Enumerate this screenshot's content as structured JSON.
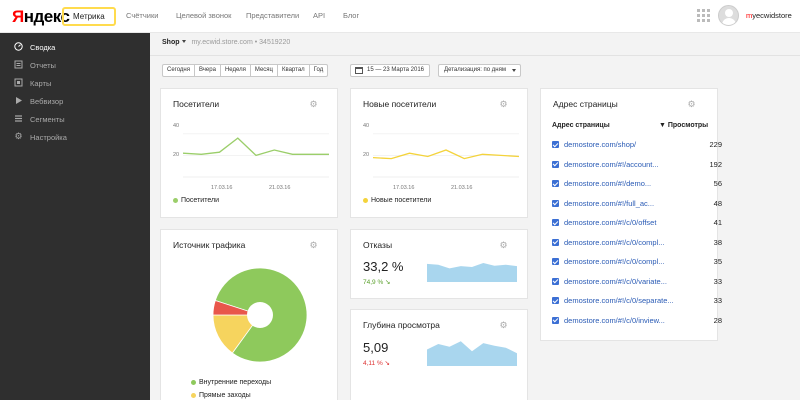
{
  "header": {
    "logo_ya": "Я",
    "logo_rest": "ндекс",
    "product_tab": "Метрика",
    "nav": [
      "Счётчики",
      "Целевой звонок",
      "Представители",
      "API",
      "Блог"
    ],
    "username_first": "m",
    "username_rest": "yecwidstore"
  },
  "sidebar": {
    "items": [
      {
        "label": "Сводка",
        "icon": "dashboard-icon",
        "active": true
      },
      {
        "label": "Отчеты",
        "icon": "reports-icon",
        "active": false
      },
      {
        "label": "Карты",
        "icon": "maps-icon",
        "active": false
      },
      {
        "label": "Вебвизор",
        "icon": "play-icon",
        "active": false
      },
      {
        "label": "Сегменты",
        "icon": "segments-icon",
        "active": false
      },
      {
        "label": "Настройка",
        "icon": "gear-icon",
        "active": false
      }
    ]
  },
  "breadcrumb": {
    "site": "Shop",
    "url": "my.ecwid.store.com",
    "separator": "•",
    "counter_id": "34519220"
  },
  "period_buttons": [
    "Сегодня",
    "Вчера",
    "Неделя",
    "Месяц",
    "Квартал",
    "Год"
  ],
  "date_range": "15 — 23 Марта 2016",
  "detail_label": "Детализация: по дням",
  "visitors_card": {
    "title": "Посетители",
    "y_ticks": [
      "40",
      "20"
    ],
    "x_ticks": [
      "17.03.16",
      "21.03.16"
    ],
    "legend": "Посетители",
    "color": "#9bce6a",
    "chart_data": {
      "type": "line",
      "x": [
        "15.03.16",
        "16.03.16",
        "17.03.16",
        "18.03.16",
        "19.03.16",
        "20.03.16",
        "21.03.16",
        "22.03.16",
        "23.03.16"
      ],
      "series": [
        {
          "name": "Посетители",
          "values": [
            22,
            21,
            23,
            36,
            20,
            25,
            21,
            21,
            21
          ]
        }
      ],
      "ylim": [
        0,
        50
      ]
    }
  },
  "new_visitors_card": {
    "title": "Новые посетители",
    "y_ticks": [
      "40",
      "20"
    ],
    "x_ticks": [
      "17.03.16",
      "21.03.16"
    ],
    "legend": "Новые посетители",
    "color": "#f4d33b",
    "chart_data": {
      "type": "line",
      "x": [
        "15.03.16",
        "16.03.16",
        "17.03.16",
        "18.03.16",
        "19.03.16",
        "20.03.16",
        "21.03.16",
        "22.03.16",
        "23.03.16"
      ],
      "series": [
        {
          "name": "Новые посетители",
          "values": [
            18,
            17,
            22,
            19,
            25,
            17,
            21,
            20,
            19
          ]
        }
      ],
      "ylim": [
        0,
        50
      ]
    }
  },
  "traffic_card": {
    "title": "Источник трафика",
    "legend": [
      {
        "label": "Внутренние переходы",
        "color": "#8ec95c"
      },
      {
        "label": "Прямые заходы",
        "color": "#f6d45e"
      }
    ],
    "chart_data": {
      "type": "pie",
      "values": [
        80,
        15,
        5
      ],
      "colors": [
        "#8ec95c",
        "#f6d45e",
        "#e8574b"
      ]
    }
  },
  "bounce_card": {
    "title": "Отказы",
    "value": "33,2 %",
    "delta": "74,9 % ↘",
    "color": "#a9d6ee",
    "chart_data": {
      "type": "area",
      "values": [
        40,
        38,
        30,
        35,
        33,
        42,
        36,
        38,
        35
      ]
    }
  },
  "depth_card": {
    "title": "Глубина просмотра",
    "value": "5,09",
    "delta": "4,11 % ↘",
    "color": "#a9d6ee",
    "chart_data": {
      "type": "area",
      "values": [
        18,
        24,
        21,
        27,
        16,
        25,
        22,
        20,
        14
      ]
    }
  },
  "pages_card": {
    "title": "Адрес страницы",
    "col_page": "Адрес страницы",
    "col_views": "▼ Просмотры",
    "rows": [
      {
        "url": "demostore.com/shop/",
        "views": "229"
      },
      {
        "url": "demostore.com/#!/account...",
        "views": "192"
      },
      {
        "url": "demostore.com/#!/demo...",
        "views": "56"
      },
      {
        "url": "demostore.com/#!/full_ac...",
        "views": "48"
      },
      {
        "url": "demostore.com/#!/c/0/offset",
        "views": "41"
      },
      {
        "url": "demostore.com/#!/c/0/compl...",
        "views": "38"
      },
      {
        "url": "demostore.com/#!/c/0/compl...",
        "views": "35"
      },
      {
        "url": "demostore.com/#!/c/0/variate...",
        "views": "33"
      },
      {
        "url": "demostore.com/#!/c/0/separate...",
        "views": "33"
      },
      {
        "url": "demostore.com/#!/c/0/inview...",
        "views": "28"
      }
    ]
  }
}
